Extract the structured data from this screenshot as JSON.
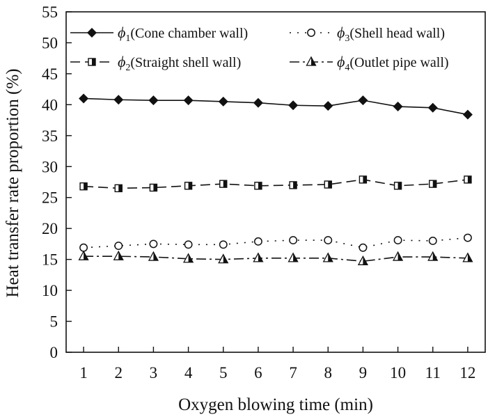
{
  "chart_data": {
    "type": "line",
    "xlabel": "Oxygen blowing time (min)",
    "ylabel": "Heat transfer rate proportion (%)",
    "x": [
      1,
      2,
      3,
      4,
      5,
      6,
      7,
      8,
      9,
      10,
      11,
      12
    ],
    "x_tick_labels": [
      "1",
      "2",
      "3",
      "4",
      "5",
      "6",
      "7",
      "8",
      "9",
      "10",
      "11",
      "12"
    ],
    "xlim": [
      0.5,
      12.5
    ],
    "ylim": [
      0,
      55
    ],
    "y_ticks": [
      0,
      5,
      10,
      15,
      20,
      25,
      30,
      35,
      40,
      45,
      50,
      55
    ],
    "y_tick_labels": [
      "0",
      "5",
      "10",
      "15",
      "20",
      "25",
      "30",
      "35",
      "40",
      "45",
      "50",
      "55"
    ],
    "grid": false,
    "legend_position": "top",
    "series": [
      {
        "id": "phi1",
        "symbol": "ϕ",
        "subscript": "1",
        "name": "(Cone chamber wall)",
        "marker": "diamond",
        "line": "solid",
        "values": [
          41.0,
          40.8,
          40.7,
          40.7,
          40.5,
          40.3,
          39.9,
          39.8,
          40.7,
          39.7,
          39.5,
          38.4
        ]
      },
      {
        "id": "phi2",
        "symbol": "ϕ",
        "subscript": "2",
        "name": "(Straight shell wall)",
        "marker": "half-square",
        "line": "dash",
        "values": [
          26.8,
          26.5,
          26.6,
          26.9,
          27.2,
          26.9,
          27.0,
          27.1,
          27.9,
          26.9,
          27.2,
          27.9
        ]
      },
      {
        "id": "phi3",
        "symbol": "ϕ",
        "subscript": "3",
        "name": "(Shell head wall)",
        "marker": "circle",
        "line": "dot",
        "values": [
          16.9,
          17.2,
          17.5,
          17.4,
          17.4,
          17.9,
          18.1,
          18.1,
          16.9,
          18.1,
          18.0,
          18.5
        ]
      },
      {
        "id": "phi4",
        "symbol": "ϕ",
        "subscript": "4",
        "name": "(Outlet pipe wall)",
        "marker": "half-triangle",
        "line": "dashdot",
        "values": [
          15.5,
          15.5,
          15.4,
          15.1,
          15.0,
          15.2,
          15.2,
          15.2,
          14.7,
          15.4,
          15.4,
          15.2
        ]
      }
    ]
  }
}
